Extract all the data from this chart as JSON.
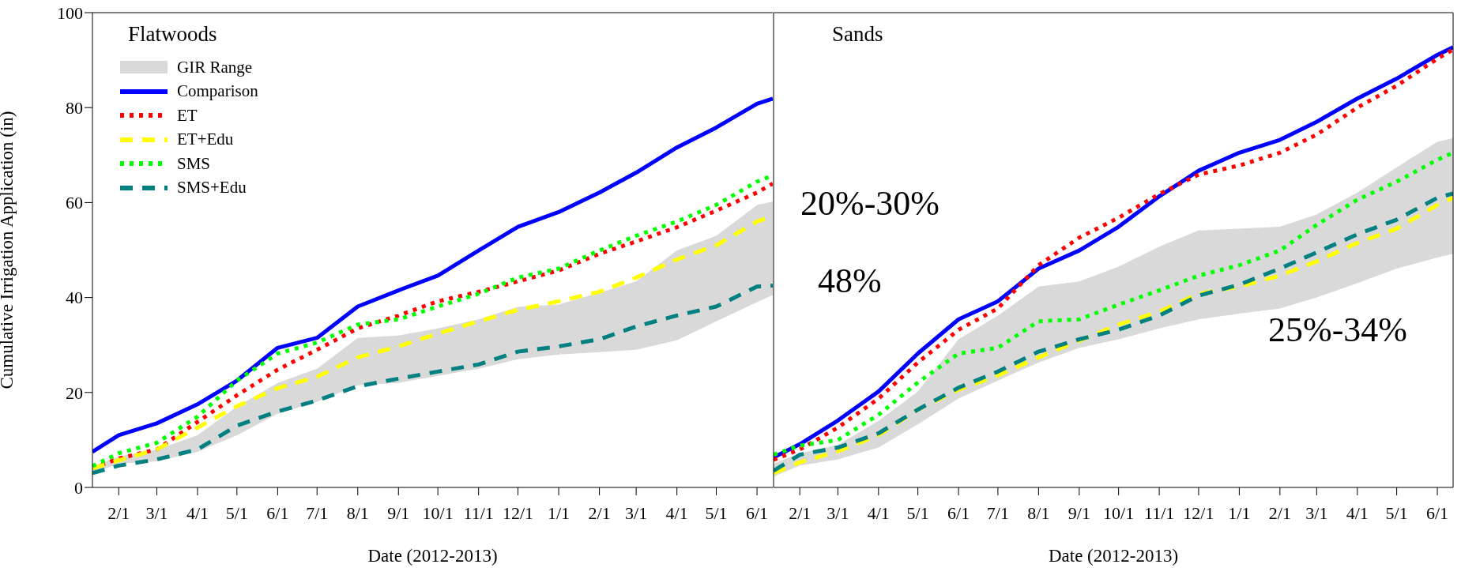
{
  "chart_data": [
    {
      "type": "line",
      "title": "Flatwoods",
      "xlabel": "Date (2012-2013)",
      "ylabel": "Cumulative Irrigation Application (in)",
      "x": [
        "2012-01-12",
        "2012-02-01",
        "2012-03-01",
        "2012-04-01",
        "2012-05-01",
        "2012-06-01",
        "2012-07-01",
        "2012-08-01",
        "2012-09-01",
        "2012-10-01",
        "2012-11-01",
        "2012-12-01",
        "2013-01-01",
        "2013-02-01",
        "2013-03-01",
        "2013-04-01",
        "2013-05-01",
        "2013-06-01",
        "2013-06-13"
      ],
      "xlim": [
        "2012-01-12",
        "2013-06-13"
      ],
      "xticks": [
        {
          "value": "2012-02-01",
          "label": "2/1"
        },
        {
          "value": "2012-03-01",
          "label": "3/1"
        },
        {
          "value": "2012-04-01",
          "label": "4/1"
        },
        {
          "value": "2012-05-01",
          "label": "5/1"
        },
        {
          "value": "2012-06-01",
          "label": "6/1"
        },
        {
          "value": "2012-07-01",
          "label": "7/1"
        },
        {
          "value": "2012-08-01",
          "label": "8/1"
        },
        {
          "value": "2012-09-01",
          "label": "9/1"
        },
        {
          "value": "2012-10-01",
          "label": "10/1"
        },
        {
          "value": "2012-11-01",
          "label": "11/1"
        },
        {
          "value": "2012-12-01",
          "label": "12/1"
        },
        {
          "value": "2013-01-01",
          "label": "1/1"
        },
        {
          "value": "2013-02-01",
          "label": "2/1"
        },
        {
          "value": "2013-03-01",
          "label": "3/1"
        },
        {
          "value": "2013-04-01",
          "label": "4/1"
        },
        {
          "value": "2013-05-01",
          "label": "5/1"
        },
        {
          "value": "2013-06-01",
          "label": "6/1"
        }
      ],
      "ylim": [
        0,
        100
      ],
      "yticks": [
        0,
        20,
        40,
        60,
        80,
        100
      ],
      "legend": "top left",
      "series": [
        {
          "name": "GIR Range",
          "type": "area",
          "color": "#d9d9d9",
          "values": [
            null,
            null,
            null,
            null,
            null,
            null,
            null,
            null,
            null,
            null,
            null,
            null,
            null,
            null,
            null,
            null,
            null,
            null,
            null
          ],
          "lower": [
            3,
            5,
            5.5,
            7.5,
            11,
            15.5,
            18,
            21.5,
            22,
            23.5,
            25,
            27,
            28,
            28.5,
            29,
            31,
            35,
            39,
            40.5
          ],
          "upper": [
            4.5,
            6.5,
            8,
            11,
            17,
            22,
            25,
            31.5,
            32,
            33.5,
            35.4,
            38,
            38.5,
            41,
            43.4,
            49.9,
            53,
            59.5,
            60.2
          ]
        },
        {
          "name": "Comparison",
          "color": "#0000ff",
          "line_style": "solid",
          "values": [
            7.5,
            11,
            13.5,
            17.5,
            22.5,
            29.4,
            31.5,
            38.1,
            41.5,
            44.6,
            49.9,
            54.9,
            58,
            62.1,
            66.3,
            71.6,
            75.8,
            80.8,
            81.9
          ]
        },
        {
          "name": "ET",
          "color": "#ff0000",
          "line_style": "dotted",
          "values": [
            4,
            6.1,
            8,
            13.8,
            19.4,
            24.8,
            29,
            33.5,
            36.2,
            39.2,
            41.2,
            43.4,
            45.7,
            49.2,
            51.8,
            54.8,
            58.3,
            62.1,
            64
          ]
        },
        {
          "name": "ET+Edu",
          "color": "#ffff00",
          "line_style": "dashed",
          "values": [
            4,
            5.7,
            8,
            12.6,
            17.1,
            20.9,
            23.3,
            27.4,
            29.7,
            32.4,
            35,
            37.4,
            39.2,
            41.2,
            44.2,
            48,
            51,
            56,
            57.1
          ]
        },
        {
          "name": "SMS",
          "color": "#00ff00",
          "line_style": "dotted",
          "values": [
            4.5,
            7.2,
            9.4,
            14.9,
            22.5,
            28.2,
            30.5,
            34.3,
            35.4,
            38.1,
            40.8,
            44.2,
            46.1,
            49.9,
            53,
            56,
            59.5,
            64.4,
            65.7
          ]
        },
        {
          "name": "SMS+Edu",
          "color": "#008080",
          "line_style": "dashed",
          "values": [
            3,
            4.6,
            5.9,
            8,
            13,
            16,
            18.3,
            21.3,
            22.9,
            24.4,
            25.9,
            28.6,
            29.7,
            31.2,
            33.9,
            36.2,
            38.1,
            42.3,
            42.5
          ]
        }
      ]
    },
    {
      "type": "line",
      "title": "Sands",
      "xlabel": "Date (2012-2013)",
      "tick_labels": "x",
      "annotations": [
        "20%-30%",
        "48%",
        "25%-34%"
      ],
      "x": [
        "2012-01-12",
        "2012-02-01",
        "2012-03-01",
        "2012-04-01",
        "2012-05-01",
        "2012-06-01",
        "2012-07-01",
        "2012-08-01",
        "2012-09-01",
        "2012-10-01",
        "2012-11-01",
        "2012-12-01",
        "2013-01-01",
        "2013-02-01",
        "2013-03-01",
        "2013-04-01",
        "2013-05-01",
        "2013-06-01",
        "2013-06-13"
      ],
      "xlim": [
        "2012-01-12",
        "2013-06-13"
      ],
      "xticks": [
        {
          "value": "2012-02-01",
          "label": "2/1"
        },
        {
          "value": "2012-03-01",
          "label": "3/1"
        },
        {
          "value": "2012-04-01",
          "label": "4/1"
        },
        {
          "value": "2012-05-01",
          "label": "5/1"
        },
        {
          "value": "2012-06-01",
          "label": "6/1"
        },
        {
          "value": "2012-07-01",
          "label": "7/1"
        },
        {
          "value": "2012-08-01",
          "label": "8/1"
        },
        {
          "value": "2012-09-01",
          "label": "9/1"
        },
        {
          "value": "2012-10-01",
          "label": "10/1"
        },
        {
          "value": "2012-11-01",
          "label": "11/1"
        },
        {
          "value": "2012-12-01",
          "label": "12/1"
        },
        {
          "value": "2013-01-01",
          "label": "1/1"
        },
        {
          "value": "2013-02-01",
          "label": "2/1"
        },
        {
          "value": "2013-03-01",
          "label": "3/1"
        },
        {
          "value": "2013-04-01",
          "label": "4/1"
        },
        {
          "value": "2013-05-01",
          "label": "5/1"
        },
        {
          "value": "2013-06-01",
          "label": "6/1"
        }
      ],
      "ylim": [
        0,
        100
      ],
      "yticks": [
        0,
        20,
        40,
        60,
        80,
        100
      ],
      "series": [
        {
          "type": "area",
          "color": "#d9d9d9",
          "values": [
            null,
            null,
            null,
            null,
            null,
            null,
            null,
            null,
            null,
            null,
            null,
            null,
            null,
            null,
            null,
            null,
            null,
            null,
            null
          ],
          "lower": [
            2.3,
            4.6,
            5.9,
            8.4,
            13.3,
            18.7,
            22.5,
            26.3,
            29.4,
            31.2,
            33.5,
            35.4,
            36.6,
            37.7,
            40,
            43,
            46.1,
            48.4,
            49.2
          ],
          "upper": [
            5,
            7.2,
            9,
            14,
            20.2,
            31.2,
            36.2,
            42.3,
            43.4,
            46.5,
            50.7,
            54.1,
            54.5,
            54.9,
            57.5,
            62.1,
            67.4,
            72.8,
            73.6
          ]
        },
        {
          "color": "#0000ff",
          "line_style": "solid",
          "values": [
            6.3,
            9.1,
            14.1,
            20.2,
            28.2,
            35.4,
            39.2,
            46.1,
            49.9,
            54.9,
            61.3,
            66.7,
            70.5,
            73.2,
            77,
            81.9,
            86.1,
            91.1,
            92.7
          ]
        },
        {
          "color": "#ff0000",
          "line_style": "dotted",
          "values": [
            5.8,
            8,
            12.6,
            18.7,
            26.3,
            33.2,
            37.7,
            46.8,
            52.6,
            56.8,
            61.8,
            65.9,
            67.8,
            70.5,
            74.3,
            80,
            84.6,
            90.3,
            92.2
          ]
        },
        {
          "color": "#ffff00",
          "line_style": "dashed",
          "values": [
            3,
            5.3,
            7.6,
            11,
            16.4,
            20.6,
            23.6,
            27.4,
            30.9,
            34.3,
            37,
            40.8,
            42.3,
            44.6,
            47.6,
            51.5,
            54.5,
            59.5,
            61
          ]
        },
        {
          "color": "#00ff00",
          "line_style": "dotted",
          "values": [
            6.9,
            8.8,
            10,
            15.3,
            22.1,
            28.2,
            29.4,
            35,
            35.4,
            38.5,
            41.5,
            44.6,
            46.8,
            49.9,
            55.3,
            60.6,
            64.4,
            69,
            70.5
          ]
        },
        {
          "color": "#008080",
          "line_style": "dashed",
          "values": [
            3.5,
            6.9,
            8.4,
            11.4,
            16.4,
            21,
            24.4,
            28.6,
            31.2,
            33.2,
            36.2,
            40.4,
            42.7,
            46.1,
            49.5,
            53.3,
            56.4,
            61,
            61.9
          ]
        }
      ]
    }
  ]
}
